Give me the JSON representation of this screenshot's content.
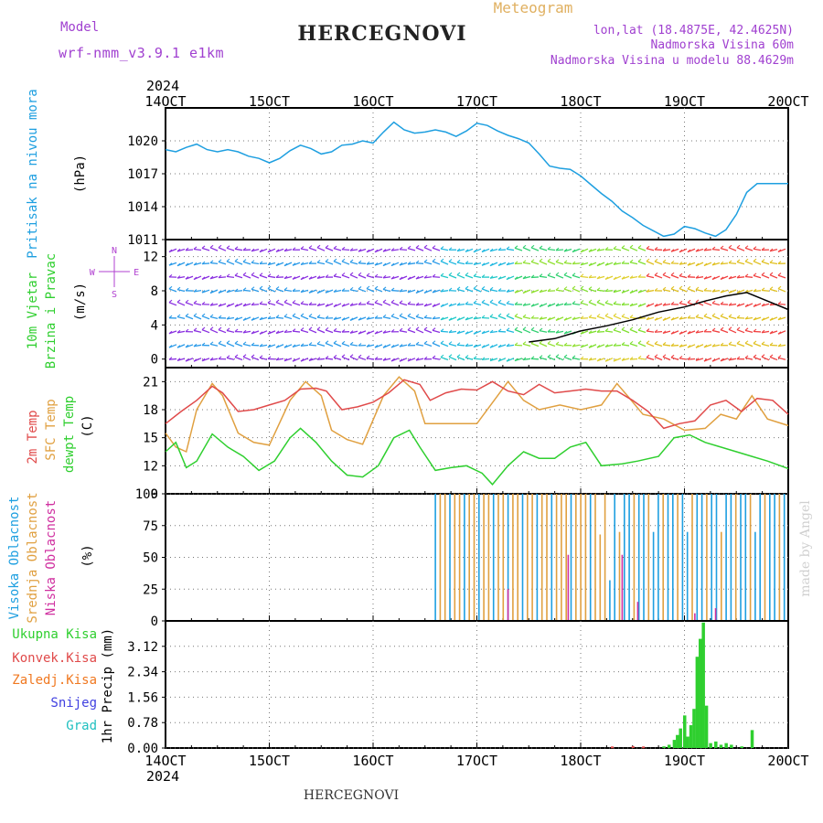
{
  "header": {
    "model_label": "Model",
    "model_name": "wrf-nmm_v3.9.1  e1km",
    "title": "HERCEGNOVI",
    "meteogram_label": "Meteogram",
    "lonlat": "lon,lat (18.4875E, 42.4625N)",
    "elevation": "Nadmorska Visina 60m",
    "model_elevation": "Nadmorska Visina u modelu 88.4629m",
    "year": "2024",
    "footer_title": "HERCEGNOVI",
    "credit": "made by Angel"
  },
  "colors": {
    "pressure": "#1e9fe0",
    "temp2m": "#e04a4a",
    "sfc_temp": "#e0a040",
    "dewpt": "#2fcf2f",
    "cloud_high": "#1e9fe0",
    "cloud_mid": "#e0a040",
    "cloud_low": "#d030a0",
    "precip_total": "#2fcf2f",
    "precip_conv": "#e04a4a",
    "precip_strat": "#f07820",
    "precip_snow": "#4040e0",
    "precip_graupel": "#20c0c0",
    "model_text": "#a040d0",
    "meteogram_text": "#e0b060",
    "wind_black": "#000000"
  },
  "time_axis": {
    "start": "14OCT",
    "end": "20OCT",
    "labels": [
      "14OCT",
      "15OCT",
      "16OCT",
      "17OCT",
      "18OCT",
      "19OCT",
      "20OCT"
    ]
  },
  "chart_data": [
    {
      "type": "line",
      "panel": "pressure",
      "ylabel_lines": [
        "Pritisak na nivou mora",
        "(hPa)"
      ],
      "ylim": [
        1011,
        1023
      ],
      "yticks": [
        1011,
        1014,
        1017,
        1020
      ],
      "x_days": [
        0,
        0.1,
        0.2,
        0.3,
        0.4,
        0.5,
        0.6,
        0.7,
        0.8,
        0.9,
        1.0,
        1.1,
        1.2,
        1.3,
        1.4,
        1.5,
        1.6,
        1.7,
        1.8,
        1.9,
        2.0,
        2.1,
        2.2,
        2.3,
        2.4,
        2.5,
        2.6,
        2.7,
        2.8,
        2.9,
        3.0,
        3.1,
        3.2,
        3.3,
        3.4,
        3.5,
        3.6,
        3.7,
        3.8,
        3.9,
        4.0,
        4.1,
        4.2,
        4.3,
        4.4,
        4.5,
        4.6,
        4.7,
        4.8,
        4.9,
        5.0,
        5.1,
        5.2,
        5.3,
        5.4,
        5.5,
        5.6,
        5.7,
        5.8,
        5.9,
        6.0
      ],
      "values": [
        1019.2,
        1019.0,
        1019.4,
        1019.7,
        1019.2,
        1019.0,
        1019.2,
        1019.0,
        1018.6,
        1018.4,
        1018.0,
        1018.4,
        1019.1,
        1019.6,
        1019.3,
        1018.8,
        1019.0,
        1019.6,
        1019.7,
        1020.0,
        1019.8,
        1020.8,
        1021.7,
        1021.0,
        1020.7,
        1020.8,
        1021.0,
        1020.8,
        1020.4,
        1020.9,
        1021.6,
        1021.4,
        1020.9,
        1020.5,
        1020.2,
        1019.8,
        1018.8,
        1017.7,
        1017.5,
        1017.4,
        1016.8,
        1016.0,
        1015.2,
        1014.5,
        1013.6,
        1013.0,
        1012.3,
        1011.8,
        1011.3,
        1011.5,
        1012.2,
        1012.0,
        1011.6,
        1011.3,
        1011.9,
        1013.3,
        1015.3,
        1016.1,
        1016.1,
        1016.1,
        1016.1
      ]
    },
    {
      "type": "quiver",
      "panel": "wind",
      "ylabel_lines": [
        "10m Vjetar",
        "Brzina i Pravac",
        "(m/s)"
      ],
      "compass": [
        "N",
        "E",
        "S",
        "W"
      ],
      "ylim": [
        -1,
        14
      ],
      "yticks": [
        0,
        4,
        8,
        12
      ],
      "speed_x_days": [
        3.5,
        3.75,
        4.0,
        4.25,
        4.5,
        4.75,
        5.0,
        5.2,
        5.4,
        5.6,
        5.8,
        6.0
      ],
      "speed_values": [
        2.0,
        2.4,
        3.3,
        3.9,
        4.6,
        5.5,
        6.1,
        6.8,
        7.4,
        7.8,
        6.8,
        5.8
      ]
    },
    {
      "type": "line",
      "panel": "temperature",
      "ylabel_lines": [
        "2m Temp",
        "SFC Temp",
        "dewpt Temp",
        "(C)"
      ],
      "ylim": [
        9,
        22.5
      ],
      "yticks": [
        9,
        12,
        15,
        18,
        21
      ],
      "series": [
        {
          "name": "2m Temp",
          "x_days": [
            0,
            0.15,
            0.3,
            0.45,
            0.55,
            0.7,
            0.85,
            1.0,
            1.15,
            1.3,
            1.45,
            1.55,
            1.7,
            1.85,
            2.0,
            2.15,
            2.3,
            2.45,
            2.55,
            2.7,
            2.85,
            3.0,
            3.15,
            3.3,
            3.45,
            3.6,
            3.75,
            3.9,
            4.05,
            4.2,
            4.35,
            4.5,
            4.65,
            4.8,
            4.95,
            5.1,
            5.25,
            5.4,
            5.55,
            5.7,
            5.85,
            6.0
          ],
          "values": [
            16.5,
            17.8,
            19.0,
            20.5,
            19.8,
            17.8,
            18.0,
            18.5,
            19.0,
            20.2,
            20.3,
            20.0,
            18.0,
            18.3,
            18.8,
            19.8,
            21.2,
            20.7,
            19.0,
            19.8,
            20.2,
            20.1,
            21.0,
            20.0,
            19.6,
            20.7,
            19.8,
            20.0,
            20.2,
            20.0,
            20.0,
            19.0,
            17.8,
            16.0,
            16.5,
            16.8,
            18.5,
            19.0,
            17.8,
            19.2,
            19.0,
            17.5
          ]
        },
        {
          "name": "SFC Temp",
          "x_days": [
            0,
            0.1,
            0.2,
            0.3,
            0.45,
            0.55,
            0.7,
            0.85,
            1.0,
            1.2,
            1.35,
            1.5,
            1.6,
            1.75,
            1.9,
            2.1,
            2.25,
            2.4,
            2.5,
            2.6,
            2.75,
            3.0,
            3.2,
            3.3,
            3.45,
            3.6,
            3.8,
            4.0,
            4.2,
            4.35,
            4.45,
            4.6,
            4.8,
            5.0,
            5.2,
            5.35,
            5.5,
            5.65,
            5.8,
            6.0
          ],
          "values": [
            15.5,
            14.0,
            13.5,
            18.0,
            20.8,
            19.5,
            15.5,
            14.5,
            14.2,
            19.0,
            21.0,
            19.5,
            15.8,
            14.8,
            14.3,
            19.5,
            21.5,
            20.0,
            16.5,
            16.5,
            16.5,
            16.5,
            19.5,
            21.0,
            19.0,
            18.0,
            18.5,
            18.0,
            18.5,
            20.8,
            19.5,
            17.5,
            17.0,
            15.8,
            16.0,
            17.5,
            17.0,
            19.5,
            17.0,
            16.3
          ]
        },
        {
          "name": "dewpt Temp",
          "x_days": [
            0,
            0.1,
            0.2,
            0.3,
            0.45,
            0.6,
            0.75,
            0.9,
            1.05,
            1.2,
            1.3,
            1.45,
            1.6,
            1.75,
            1.9,
            2.05,
            2.2,
            2.35,
            2.45,
            2.6,
            2.75,
            2.9,
            3.05,
            3.15,
            3.3,
            3.45,
            3.6,
            3.75,
            3.9,
            4.05,
            4.2,
            4.4,
            4.55,
            4.75,
            4.9,
            5.05,
            5.2,
            5.35,
            5.5,
            5.65,
            5.8,
            6.0
          ],
          "values": [
            13.5,
            14.5,
            11.8,
            12.5,
            15.4,
            14.0,
            13.0,
            11.5,
            12.5,
            15.0,
            16.0,
            14.5,
            12.5,
            11.0,
            10.8,
            12.0,
            15.0,
            15.8,
            14.0,
            11.5,
            11.8,
            12.0,
            11.2,
            10.0,
            12.0,
            13.5,
            12.8,
            12.8,
            14.0,
            14.5,
            12.0,
            12.2,
            12.5,
            13.0,
            15.0,
            15.3,
            14.5,
            14.0,
            13.5,
            13.0,
            12.5,
            11.7
          ]
        }
      ]
    },
    {
      "type": "bar",
      "panel": "cloud",
      "ylabel_lines": [
        "Visoka Oblacnost",
        "Srednja Oblacnost",
        "Niska  Oblacnost",
        "(%)"
      ],
      "ylim": [
        0,
        100
      ],
      "yticks": [
        0,
        25,
        50,
        75,
        100
      ],
      "bar_start_day": 2.6,
      "series": [
        {
          "name": "Visoka Oblacnost",
          "values": [
            100
          ]
        },
        {
          "name": "Srednja Oblacnost",
          "values": [
            100
          ]
        },
        {
          "name": "Niska  Oblacnost",
          "values": [
            52
          ]
        }
      ]
    },
    {
      "type": "bar",
      "panel": "precip",
      "ylabel_lines": [
        "1hr Precip (mm)"
      ],
      "legend": [
        "Ukupna Kisa",
        "Konvek.Kisa",
        "Zaledj.Kisa",
        "Snijeg",
        "Grad"
      ],
      "ylim": [
        0,
        3.9
      ],
      "yticks": [
        0,
        0.78,
        1.56,
        2.34,
        3.12
      ],
      "x_days": [
        4.8,
        4.85,
        4.9,
        4.93,
        4.96,
        5.0,
        5.03,
        5.06,
        5.09,
        5.12,
        5.15,
        5.18,
        5.21,
        5.25,
        5.3,
        5.35,
        5.4,
        5.45,
        5.55,
        5.65
      ],
      "values": [
        0.05,
        0.1,
        0.25,
        0.4,
        0.6,
        1.0,
        0.35,
        0.7,
        1.2,
        2.8,
        3.35,
        3.85,
        1.3,
        0.15,
        0.2,
        0.1,
        0.15,
        0.1,
        0.05,
        0.55
      ]
    }
  ]
}
